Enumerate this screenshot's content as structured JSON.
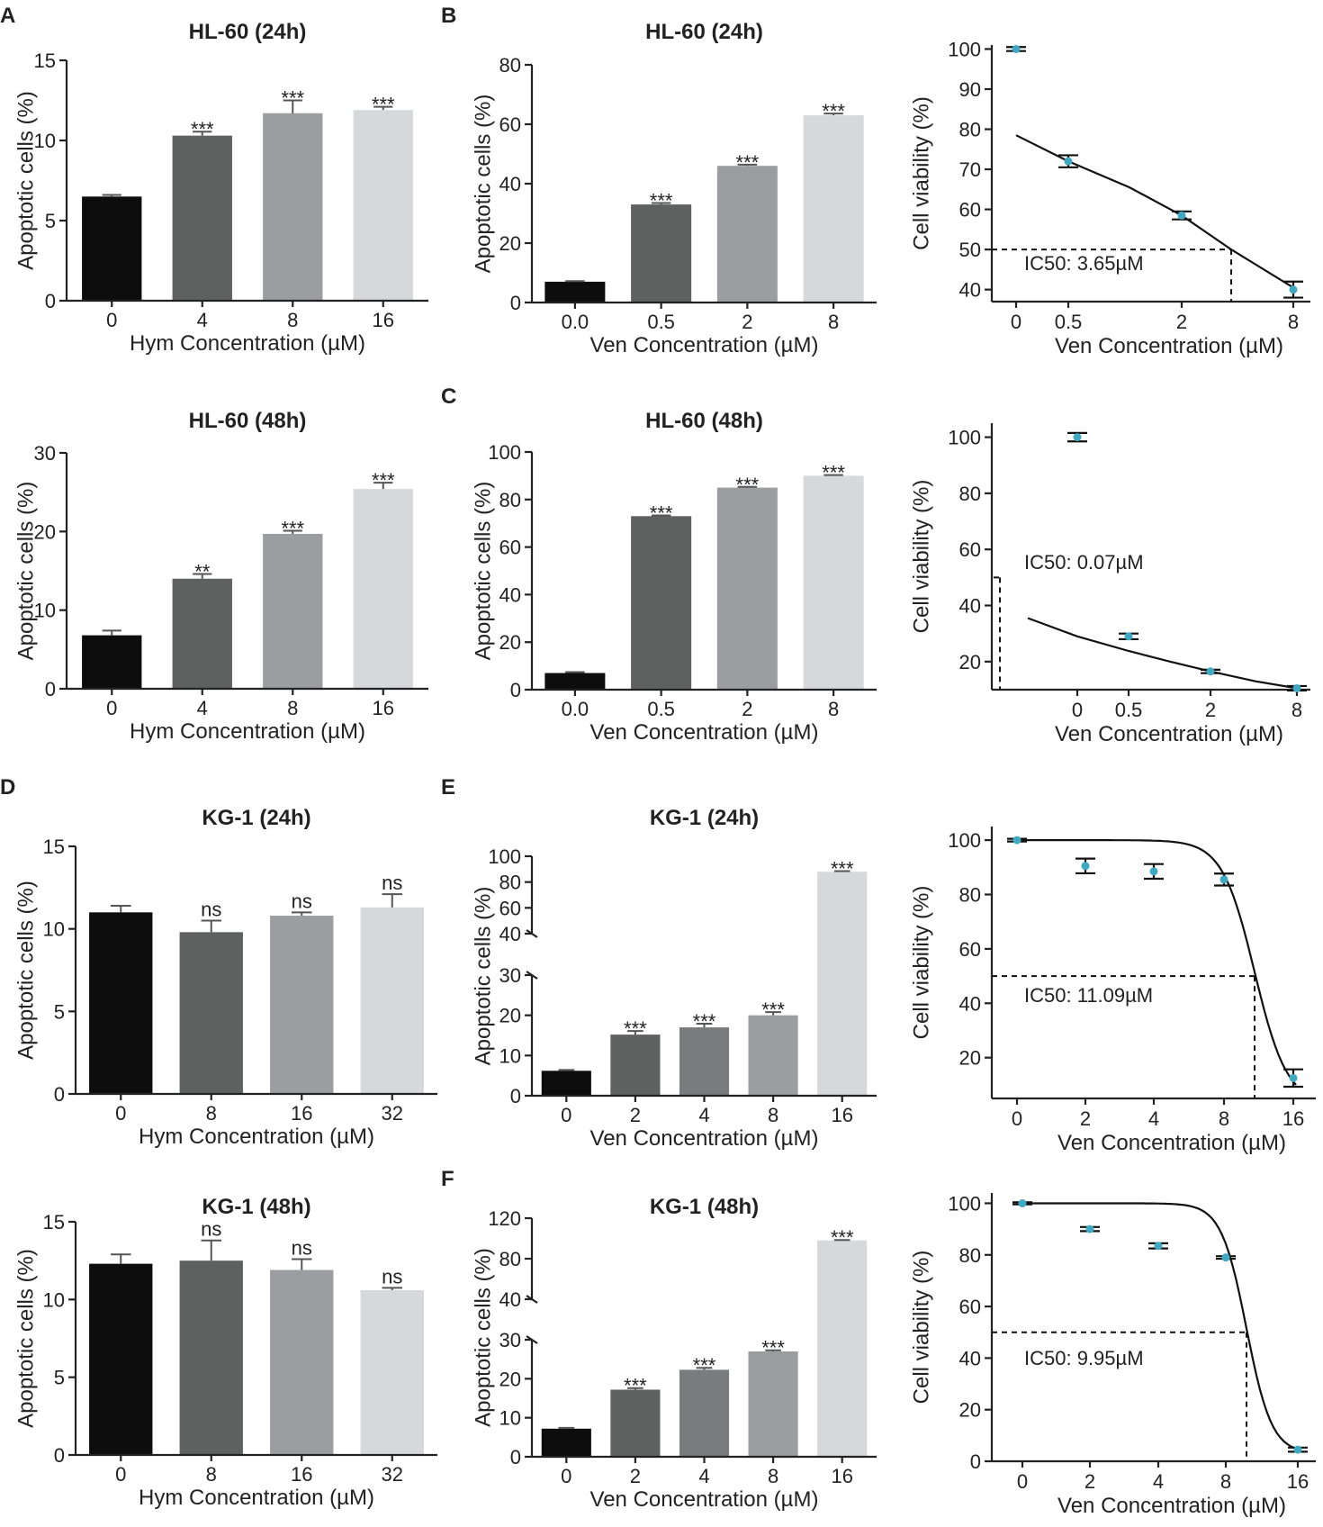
{
  "colors": {
    "dot": "#3fa9c4",
    "bars": [
      "#0d0d0d",
      "#5f6060",
      "#9c9da0",
      "#d7d8da",
      "#7a7b7d"
    ]
  },
  "panel_letters": [
    "A",
    "B",
    "C",
    "D",
    "E",
    "F"
  ],
  "chart_data": [
    {
      "id": "hym_hl60_24",
      "type": "bar",
      "title": "HL-60 (24h)",
      "xlabel": "Hym Concentration (µM)",
      "ylabel": "Apoptotic cells (%)",
      "categories": [
        "0",
        "4",
        "8",
        "16"
      ],
      "values": [
        6.5,
        10.3,
        11.7,
        11.9
      ],
      "errors": [
        0.1,
        0.25,
        0.8,
        0.2
      ],
      "significance": [
        "",
        "***",
        "***",
        "***"
      ],
      "ylim": [
        0,
        15
      ],
      "yticks": [
        "0",
        "5",
        "10",
        "15"
      ],
      "colors": [
        0,
        1,
        2,
        3
      ]
    },
    {
      "id": "ven_hl60_24",
      "type": "bar",
      "title": "HL-60 (24h)",
      "xlabel": "Ven Concentration (µM)",
      "ylabel": "Apoptotic cells (%)",
      "categories": [
        "0.0",
        "0.5",
        "2",
        "8"
      ],
      "values": [
        7,
        33,
        46,
        63
      ],
      "errors": [
        0.2,
        0.5,
        0.4,
        0.6
      ],
      "significance": [
        "",
        "***",
        "***",
        "***"
      ],
      "ylim": [
        0,
        80
      ],
      "yticks": [
        "0",
        "20",
        "40",
        "60",
        "80"
      ],
      "colors": [
        0,
        1,
        2,
        3
      ]
    },
    {
      "id": "via_hl60_24",
      "type": "scatter",
      "xlabel": "Ven Concentration (µM)",
      "ylabel": "Cell viability (%)",
      "x": [
        "0",
        "0.5",
        "2",
        "8"
      ],
      "y": [
        100,
        72,
        58.5,
        40
      ],
      "errors": [
        0.5,
        1.5,
        1,
        2
      ],
      "ylim": [
        37,
        101
      ],
      "yticks": [
        "40",
        "50",
        "60",
        "70",
        "80",
        "90",
        "100"
      ],
      "ic50_label": "IC50: 3.65µM",
      "ic50_value": 3.65,
      "fit_start": 78.5
    },
    {
      "id": "hym_hl60_48",
      "type": "bar",
      "title": "HL-60 (48h)",
      "xlabel": "Hym Concentration (µM)",
      "ylabel": "Apoptotic cells (%)",
      "categories": [
        "0",
        "4",
        "8",
        "16"
      ],
      "values": [
        6.8,
        14,
        19.7,
        25.4
      ],
      "errors": [
        0.6,
        0.6,
        0.4,
        0.8
      ],
      "significance": [
        "",
        "**",
        "***",
        "***"
      ],
      "ylim": [
        0,
        30
      ],
      "yticks": [
        "0",
        "10",
        "20",
        "30"
      ],
      "colors": [
        0,
        1,
        2,
        3
      ]
    },
    {
      "id": "ven_hl60_48",
      "type": "bar",
      "title": "HL-60 (48h)",
      "xlabel": "Ven Concentration (µM)",
      "ylabel": "Apoptotic cells (%)",
      "categories": [
        "0.0",
        "0.5",
        "2",
        "8"
      ],
      "values": [
        7,
        73,
        85,
        90
      ],
      "errors": [
        0.4,
        0.3,
        0.3,
        0.3
      ],
      "significance": [
        "",
        "***",
        "***",
        "***"
      ],
      "ylim": [
        0,
        100
      ],
      "yticks": [
        "0",
        "20",
        "40",
        "60",
        "80",
        "100"
      ],
      "colors": [
        0,
        1,
        2,
        3
      ]
    },
    {
      "id": "via_hl60_48",
      "type": "scatter",
      "xlabel": "Ven Concentration (µM)",
      "ylabel": "Cell viability (%)",
      "x": [
        "0",
        "0.5",
        "2",
        "8"
      ],
      "y": [
        100,
        29,
        16.5,
        10.5
      ],
      "errors": [
        1.5,
        1,
        0.6,
        0.8
      ],
      "ylim": [
        10,
        105
      ],
      "yticks": [
        "20",
        "40",
        "60",
        "80",
        "100"
      ],
      "ic50_label": "IC50: 0.07µM",
      "ic50_value": 0.07,
      "fit_start": 35.5
    },
    {
      "id": "hym_kg1_24",
      "type": "bar",
      "title": "KG-1 (24h)",
      "xlabel": "Hym Concentration (µM)",
      "ylabel": "Apoptotic cells (%)",
      "categories": [
        "0",
        "8",
        "16",
        "32"
      ],
      "values": [
        11,
        9.8,
        10.8,
        11.3
      ],
      "errors": [
        0.4,
        0.7,
        0.2,
        0.8
      ],
      "significance": [
        "",
        "ns",
        "ns",
        "ns"
      ],
      "ylim": [
        0,
        15
      ],
      "yticks": [
        "0",
        "5",
        "10",
        "15"
      ],
      "colors": [
        0,
        1,
        2,
        3
      ]
    },
    {
      "id": "ven_kg1_24",
      "type": "bar",
      "title": "KG-1 (24h)",
      "xlabel": "Ven Concentration (µM)",
      "ylabel": "Apoptotic cells (%)",
      "categories": [
        "0",
        "2",
        "4",
        "8",
        "16"
      ],
      "values": [
        6.2,
        15.2,
        17,
        20,
        88
      ],
      "errors": [
        0.2,
        0.9,
        0.9,
        0.8,
        0.5
      ],
      "significance": [
        "",
        "***",
        "***",
        "***",
        "***"
      ],
      "ylim": [
        0,
        100
      ],
      "yticks_low": [
        "0",
        "10",
        "20",
        "30"
      ],
      "yticks_high": [
        "40",
        "60",
        "80",
        "100"
      ],
      "axis_break": [
        30,
        40
      ],
      "colors": [
        0,
        1,
        4,
        2,
        3
      ]
    },
    {
      "id": "via_kg1_24",
      "type": "scatter",
      "xlabel": "Ven Concentration (µM)",
      "ylabel": "Cell viability (%)",
      "x": [
        "0",
        "2",
        "4",
        "8",
        "16"
      ],
      "y": [
        100,
        90.5,
        88.5,
        85.5,
        12.5
      ],
      "errors": [
        0.5,
        2.7,
        2.7,
        2.2,
        3.2
      ],
      "ylim": [
        5,
        105
      ],
      "yticks": [
        "20",
        "40",
        "60",
        "80",
        "100"
      ],
      "ic50_label": "IC50: 11.09µM",
      "ic50_value": 11.09
    },
    {
      "id": "hym_kg1_48",
      "type": "bar",
      "title": "KG-1 (48h)",
      "xlabel": "Hym Concentration (µM)",
      "ylabel": "Apoptotic cells (%)",
      "categories": [
        "0",
        "8",
        "16",
        "32"
      ],
      "values": [
        12.3,
        12.5,
        11.9,
        10.6
      ],
      "errors": [
        0.6,
        1.3,
        0.7,
        0.15
      ],
      "significance": [
        "",
        "ns",
        "ns",
        "ns"
      ],
      "ylim": [
        0,
        15
      ],
      "yticks": [
        "0",
        "5",
        "10",
        "15"
      ],
      "colors": [
        0,
        1,
        2,
        3
      ]
    },
    {
      "id": "ven_kg1_48",
      "type": "bar",
      "title": "KG-1 (48h)",
      "xlabel": "Ven Concentration (µM)",
      "ylabel": "Apoptotic cells (%)",
      "categories": [
        "0",
        "2",
        "4",
        "8",
        "16"
      ],
      "values": [
        7.2,
        17.2,
        22.3,
        27,
        98
      ],
      "errors": [
        0.2,
        0.4,
        0.5,
        0.3,
        0.5
      ],
      "significance": [
        "",
        "***",
        "***",
        "***",
        "***"
      ],
      "ylim": [
        0,
        120
      ],
      "yticks_low": [
        "0",
        "10",
        "20",
        "30"
      ],
      "yticks_high": [
        "40",
        "80",
        "120"
      ],
      "axis_break": [
        30,
        40
      ],
      "colors": [
        0,
        1,
        4,
        2,
        3
      ]
    },
    {
      "id": "via_kg1_48",
      "type": "scatter",
      "xlabel": "Ven Concentration (µM)",
      "ylabel": "Cell viability (%)",
      "x": [
        "0",
        "2",
        "4",
        "8",
        "16"
      ],
      "y": [
        100,
        90,
        83.5,
        79,
        4.5
      ],
      "errors": [
        0.4,
        0.8,
        1,
        0.5,
        0.8
      ],
      "ylim": [
        0,
        104
      ],
      "yticks": [
        "0",
        "20",
        "40",
        "60",
        "80",
        "100"
      ],
      "ic50_label": "IC50: 9.95µM",
      "ic50_value": 9.95
    }
  ]
}
